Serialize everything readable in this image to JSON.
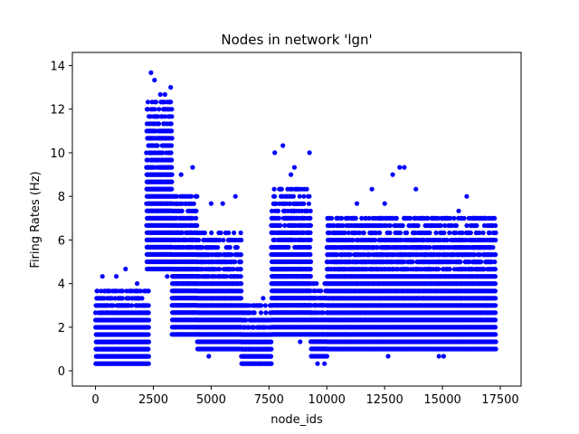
{
  "chart_data": {
    "type": "scatter",
    "title": "Nodes in network 'lgn'",
    "xlabel": "node_ids",
    "ylabel": "Firing Rates (Hz)",
    "xlim": [
      -1000,
      18400
    ],
    "ylim": [
      -0.7,
      14.6
    ],
    "xticks": [
      0,
      2500,
      5000,
      7500,
      10000,
      12500,
      15000,
      17500
    ],
    "xtick_labels": [
      "0",
      "2500",
      "5000",
      "7500",
      "10000",
      "12500",
      "15000",
      "17500"
    ],
    "yticks": [
      0,
      2,
      4,
      6,
      8,
      10,
      12,
      14
    ],
    "ytick_labels": [
      "0",
      "2",
      "4",
      "6",
      "8",
      "10",
      "12",
      "14"
    ],
    "grid": false,
    "marker_color": "#0000ff",
    "rate_step": 0.333,
    "series": [
      {
        "segments": [
          {
            "x": [
              0,
              2300
            ],
            "rate_range": [
              0.33,
              3.67
            ]
          },
          {
            "x": [
              2200,
              3300
            ],
            "rate_range": [
              4.67,
              12.33
            ]
          },
          {
            "x": [
              3300,
              4400
            ],
            "rate_range": [
              1.67,
              8.0
            ]
          },
          {
            "x": [
              4400,
              6300
            ],
            "rate_range": [
              1.0,
              6.33
            ]
          },
          {
            "x": [
              6300,
              7600
            ],
            "rate_range": [
              0.33,
              3.0
            ]
          },
          {
            "x": [
              7600,
              9300
            ],
            "rate_range": [
              1.67,
              8.33
            ]
          },
          {
            "x": [
              9300,
              10000
            ],
            "rate_range": [
              0.67,
              4.0
            ]
          },
          {
            "x": [
              10000,
              17300
            ],
            "rate_range": [
              1.0,
              7.0
            ]
          }
        ],
        "extra_points": [
          {
            "x": 2400,
            "y": 13.67
          },
          {
            "x": 2550,
            "y": 13.33
          },
          {
            "x": 3250,
            "y": 13.0
          },
          {
            "x": 2800,
            "y": 12.67
          },
          {
            "x": 3000,
            "y": 12.67
          },
          {
            "x": 4200,
            "y": 9.33
          },
          {
            "x": 3700,
            "y": 9.0
          },
          {
            "x": 8100,
            "y": 10.33
          },
          {
            "x": 7750,
            "y": 10.0
          },
          {
            "x": 9250,
            "y": 10.0
          },
          {
            "x": 8600,
            "y": 9.33
          },
          {
            "x": 8450,
            "y": 9.0
          },
          {
            "x": 13150,
            "y": 9.33
          },
          {
            "x": 13350,
            "y": 9.33
          },
          {
            "x": 12850,
            "y": 9.0
          },
          {
            "x": 11950,
            "y": 8.33
          },
          {
            "x": 13850,
            "y": 8.33
          },
          {
            "x": 16050,
            "y": 8.0
          },
          {
            "x": 6050,
            "y": 8.0
          },
          {
            "x": 5000,
            "y": 7.67
          },
          {
            "x": 5500,
            "y": 7.67
          },
          {
            "x": 11300,
            "y": 7.67
          },
          {
            "x": 12500,
            "y": 7.67
          },
          {
            "x": 15700,
            "y": 7.33
          },
          {
            "x": 14700,
            "y": 7.0
          },
          {
            "x": 17150,
            "y": 6.67
          },
          {
            "x": 300,
            "y": 4.33
          },
          {
            "x": 900,
            "y": 4.33
          },
          {
            "x": 1300,
            "y": 4.67
          },
          {
            "x": 1800,
            "y": 4.0
          },
          {
            "x": 3100,
            "y": 4.33
          },
          {
            "x": 4900,
            "y": 0.67
          },
          {
            "x": 9900,
            "y": 0.33
          },
          {
            "x": 9600,
            "y": 0.33
          },
          {
            "x": 12650,
            "y": 0.67
          },
          {
            "x": 14850,
            "y": 0.67
          },
          {
            "x": 15050,
            "y": 0.67
          },
          {
            "x": 8850,
            "y": 1.33
          },
          {
            "x": 7250,
            "y": 3.33
          },
          {
            "x": 7050,
            "y": 3.0
          }
        ]
      }
    ]
  }
}
